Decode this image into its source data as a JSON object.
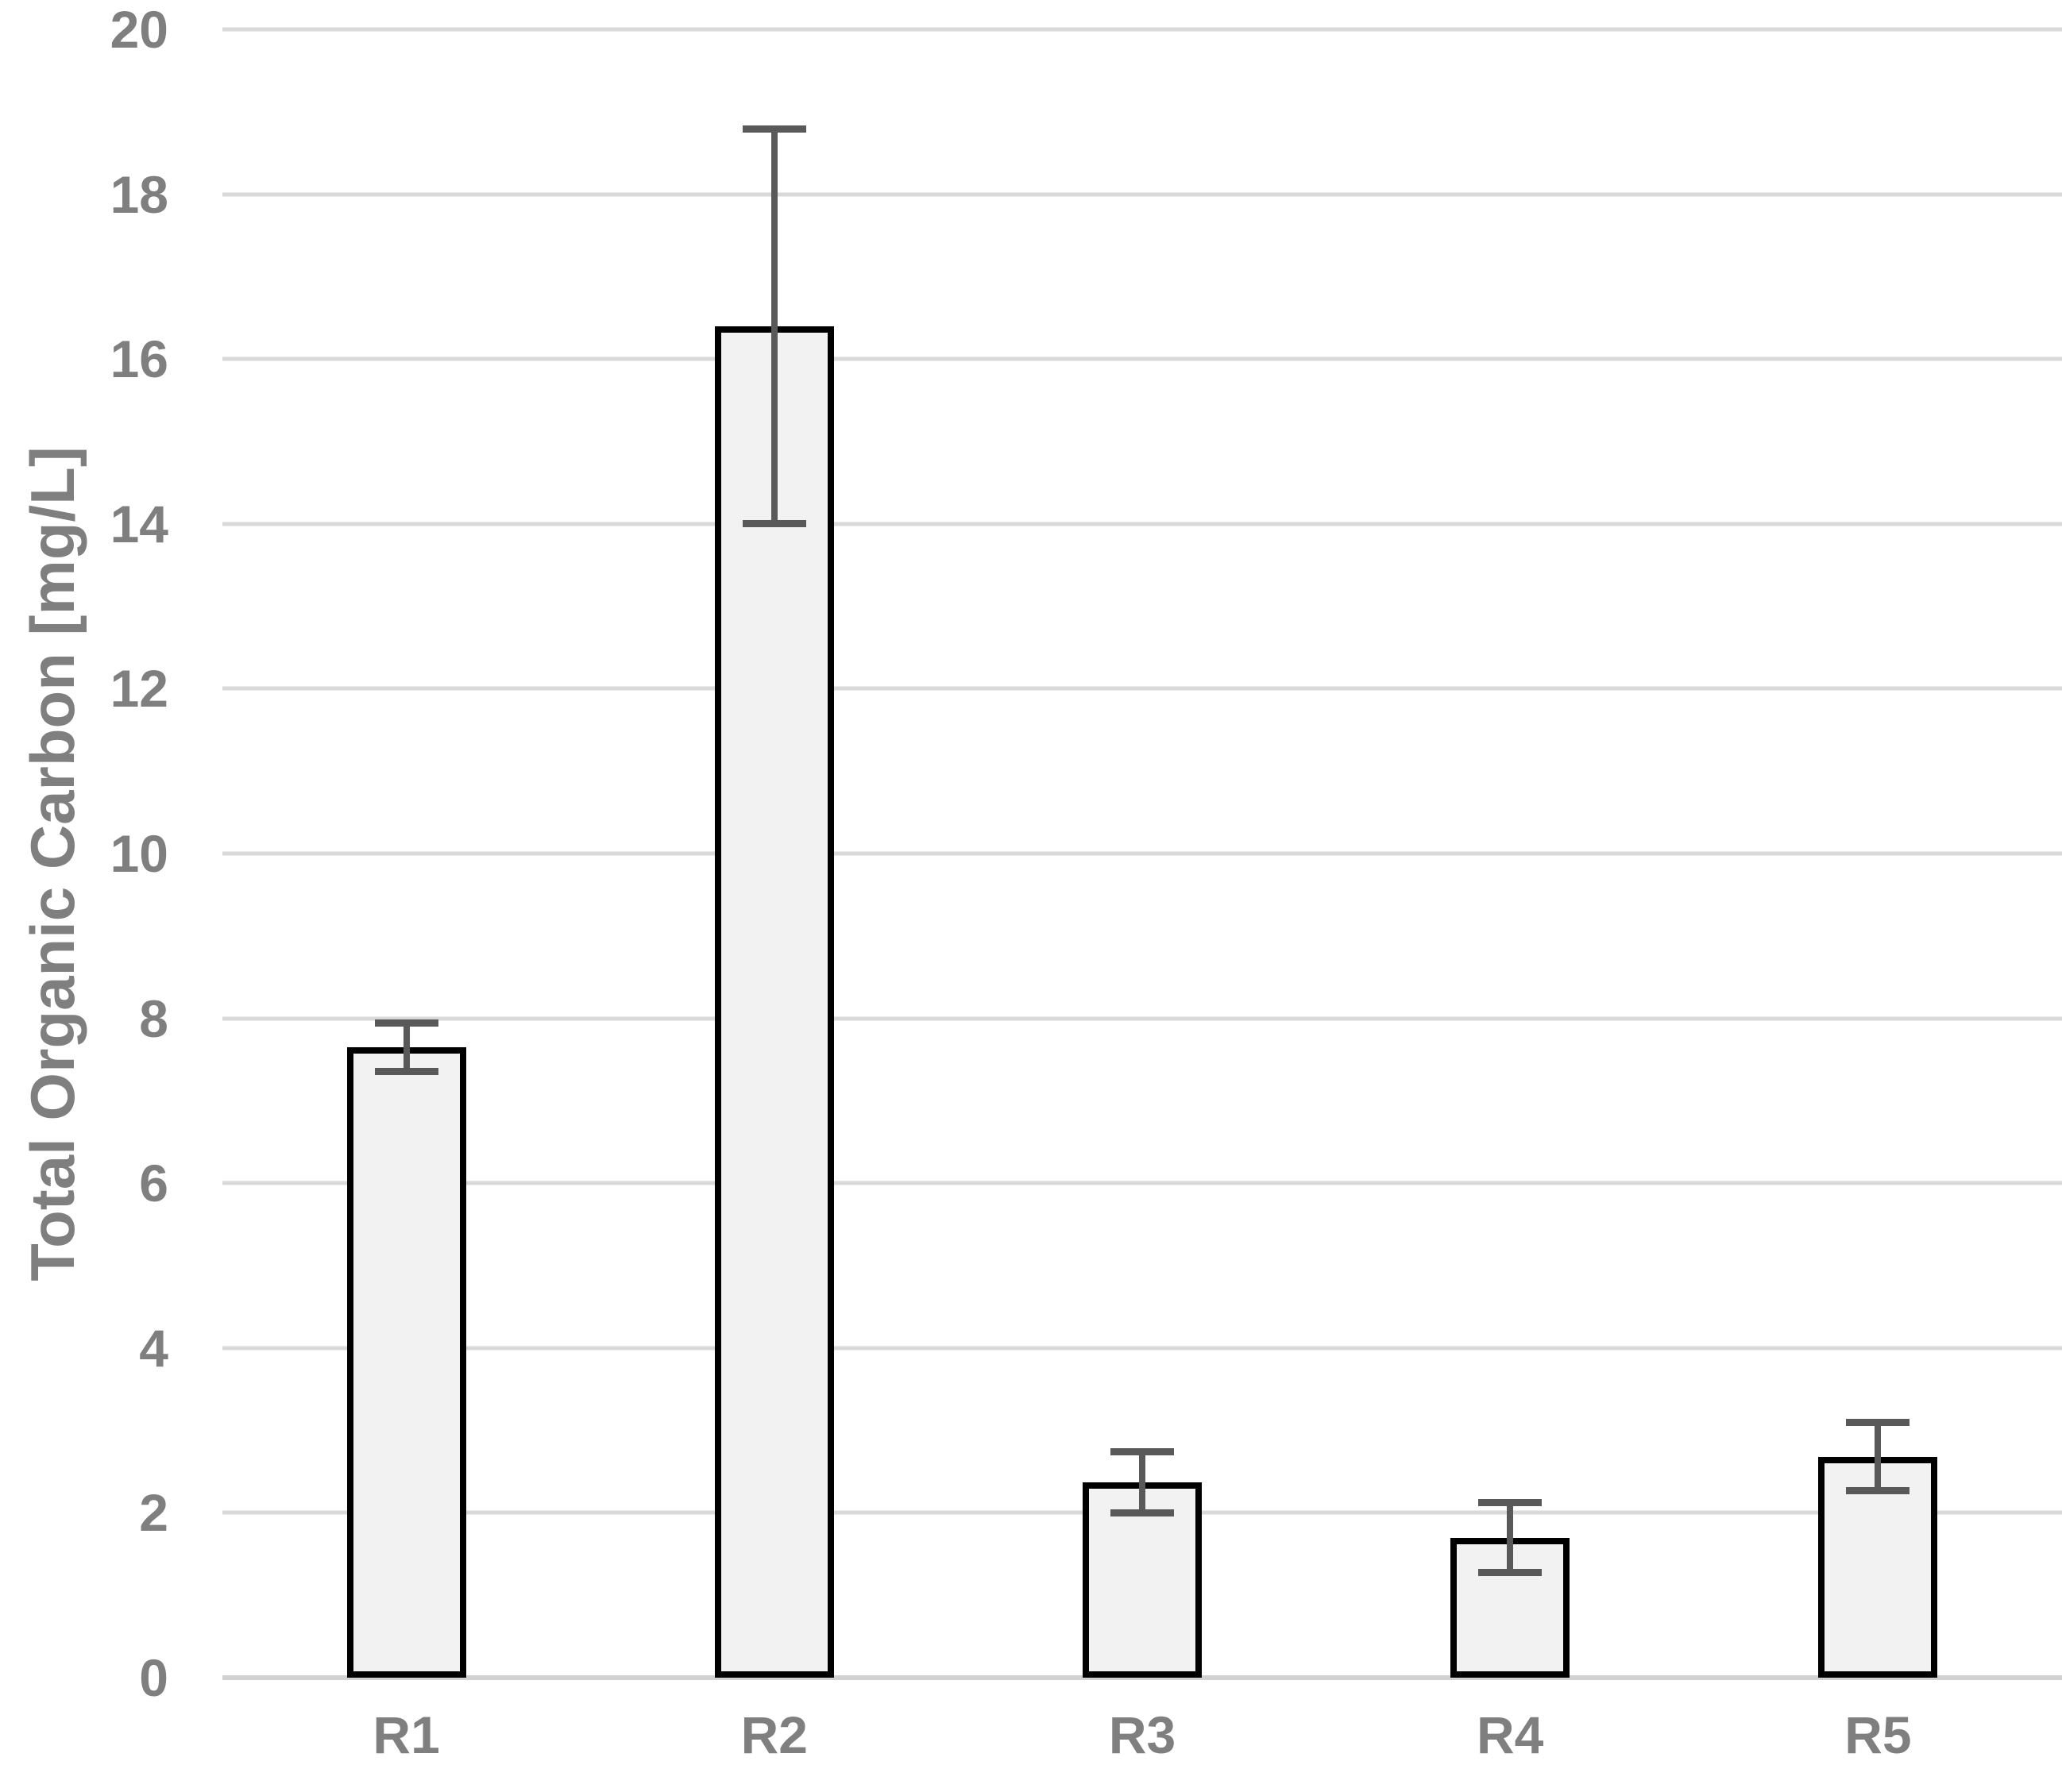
{
  "chart_data": {
    "type": "bar",
    "categories": [
      "R1",
      "R2",
      "R3",
      "R4",
      "R5"
    ],
    "values": [
      7.65,
      16.4,
      2.37,
      1.7,
      2.68
    ],
    "errors": [
      0.3,
      2.4,
      0.38,
      0.43,
      0.42
    ],
    "error_bar_type": "symmetric",
    "xlabel": "",
    "ylabel": "Total Organic Carbon [mg/L]",
    "ylim": [
      0,
      20
    ],
    "y_tick_step": 2,
    "y_ticks": [
      0,
      2,
      4,
      6,
      8,
      10,
      12,
      14,
      16,
      18,
      20
    ],
    "grid": "horizontal",
    "legend": "none",
    "colors": {
      "bar_fill": "#f2f2f2",
      "bar_border": "#000000",
      "error_bar": "#595959",
      "gridline": "#d9d9d9",
      "axis_line": "#d2d2d2",
      "axis_text": "#7f7f7f",
      "background": "#ffffff"
    }
  }
}
